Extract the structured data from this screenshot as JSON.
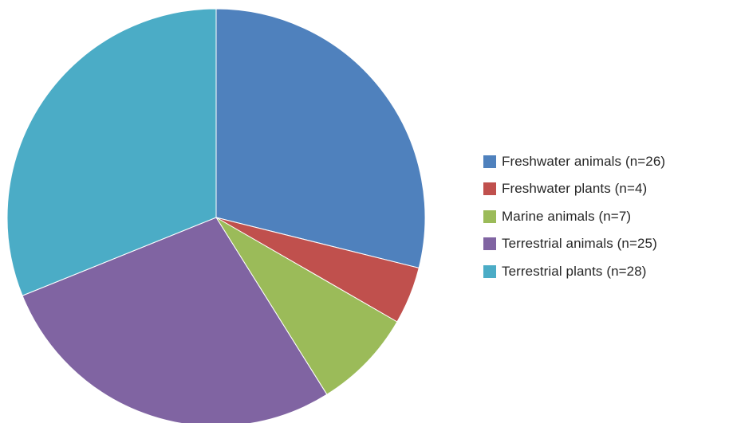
{
  "chart_data": {
    "type": "pie",
    "title": "",
    "start_angle_deg": 0,
    "direction": "clockwise",
    "slices": [
      {
        "label": "Freshwater animals  (n=26)",
        "value": 26,
        "color": "#4F81BD"
      },
      {
        "label": "Freshwater plants (n=4)",
        "value": 4,
        "color": "#C0504D"
      },
      {
        "label": "Marine animals  (n=7)",
        "value": 7,
        "color": "#9BBB59"
      },
      {
        "label": "Terrestrial animals  (n=25)",
        "value": 25,
        "color": "#8064A2"
      },
      {
        "label": "Terrestrial plants (n=28)",
        "value": 28,
        "color": "#4BACC6"
      }
    ],
    "legend": {
      "position": "right"
    },
    "slice_border_color": "#ffffff"
  }
}
